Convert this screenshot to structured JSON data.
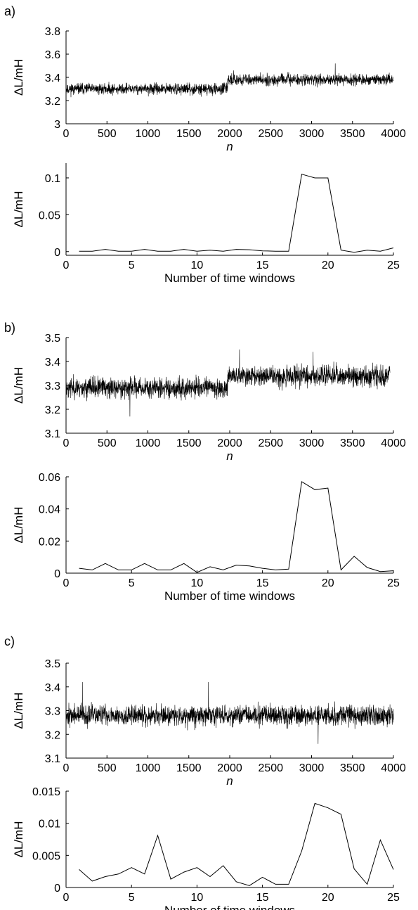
{
  "figure": {
    "panel_labels": [
      "a)",
      "b)",
      "c)"
    ]
  },
  "chart_data": [
    {
      "id": "a_top",
      "panel": "a)",
      "type": "line",
      "noise": true,
      "ylabel": "ΔL/mH",
      "xlabel": "n",
      "xlabel_italic": true,
      "xlim": [
        0,
        4000
      ],
      "ylim": [
        3.0,
        3.8
      ],
      "xticks": [
        0,
        500,
        1000,
        1500,
        2000,
        2500,
        3000,
        3500,
        4000
      ],
      "yticks": [
        3,
        3.2,
        3.4,
        3.6,
        3.8
      ],
      "yticklabels": [
        "3",
        "3.2",
        "3.4",
        "3.6",
        "3.8"
      ],
      "segments": [
        {
          "x_start": 0,
          "x_end": 1975,
          "mean": 3.3,
          "spread": 0.05
        },
        {
          "x_start": 1975,
          "x_end": 4000,
          "mean": 3.38,
          "spread": 0.05
        }
      ],
      "peaks": [
        {
          "x": 3290,
          "y": 3.52
        },
        {
          "x": 2050,
          "y": 3.46
        }
      ],
      "seed": 11
    },
    {
      "id": "a_bottom",
      "panel": "a)",
      "type": "line",
      "noise": false,
      "ylabel": "ΔL/mH",
      "xlabel": "Number of time windows",
      "xlabel_italic": false,
      "xlim": [
        0,
        25
      ],
      "ylim": [
        -0.005,
        0.12
      ],
      "xticks": [
        0,
        5,
        10,
        15,
        20,
        25
      ],
      "yticks": [
        0,
        0.05,
        0.1
      ],
      "yticklabels": [
        "0",
        "0.05",
        "0.1"
      ],
      "x": [
        1,
        2,
        3,
        4,
        5,
        6,
        7,
        8,
        9,
        10,
        11,
        12,
        13,
        14,
        15,
        16,
        17,
        18,
        19,
        20,
        21,
        22,
        23,
        24,
        25
      ],
      "y": [
        0.0005,
        0.0005,
        0.003,
        0.0005,
        0.0005,
        0.003,
        0.0005,
        0.0005,
        0.003,
        0.0005,
        0.002,
        0.0005,
        0.003,
        0.0025,
        0.001,
        0.0005,
        0.0005,
        0.105,
        0.1,
        0.1,
        0.002,
        -0.001,
        0.002,
        0.0005,
        0.005
      ]
    },
    {
      "id": "b_top",
      "panel": "b)",
      "type": "line",
      "noise": true,
      "ylabel": "ΔL/mH",
      "xlabel": "n",
      "xlabel_italic": true,
      "xlim": [
        0,
        4000
      ],
      "ylim": [
        3.1,
        3.5
      ],
      "xticks": [
        0,
        500,
        1000,
        1500,
        2000,
        2500,
        3000,
        3500,
        4000
      ],
      "yticks": [
        3.1,
        3.2,
        3.3,
        3.4,
        3.5
      ],
      "yticklabels": [
        "3.1",
        "3.2",
        "3.3",
        "3.4",
        "3.5"
      ],
      "segments": [
        {
          "x_start": 0,
          "x_end": 1975,
          "mean": 3.29,
          "spread": 0.045
        },
        {
          "x_start": 1975,
          "x_end": 3960,
          "mean": 3.34,
          "spread": 0.045
        }
      ],
      "peaks": [
        {
          "x": 2120,
          "y": 3.45
        },
        {
          "x": 3020,
          "y": 3.44
        },
        {
          "x": 780,
          "y": 3.17
        }
      ],
      "seed": 23
    },
    {
      "id": "b_bottom",
      "panel": "b)",
      "type": "line",
      "noise": false,
      "ylabel": "ΔL/mH",
      "xlabel": "Number of time windows",
      "xlabel_italic": false,
      "xlim": [
        0,
        25
      ],
      "ylim": [
        0,
        0.06
      ],
      "xticks": [
        0,
        5,
        10,
        15,
        20,
        25
      ],
      "yticks": [
        0,
        0.02,
        0.04,
        0.06
      ],
      "yticklabels": [
        "0",
        "0.02",
        "0.04",
        "0.06"
      ],
      "x": [
        1,
        2,
        3,
        4,
        5,
        6,
        7,
        8,
        9,
        10,
        11,
        12,
        13,
        14,
        15,
        16,
        17,
        18,
        19,
        20,
        21,
        22,
        23,
        24,
        25
      ],
      "y": [
        0.003,
        0.002,
        0.006,
        0.002,
        0.002,
        0.006,
        0.002,
        0.002,
        0.006,
        0.0005,
        0.004,
        0.002,
        0.005,
        0.0045,
        0.003,
        0.002,
        0.0025,
        0.057,
        0.052,
        0.053,
        0.002,
        0.0105,
        0.0035,
        0.001,
        0.0015
      ]
    },
    {
      "id": "c_top",
      "panel": "c)",
      "type": "line",
      "noise": true,
      "ylabel": "ΔL/mH",
      "xlabel": "n",
      "xlabel_italic": true,
      "xlim": [
        0,
        4000
      ],
      "ylim": [
        3.1,
        3.5
      ],
      "xticks": [
        0,
        500,
        1000,
        1500,
        2000,
        2500,
        3000,
        3500,
        4000
      ],
      "yticks": [
        3.1,
        3.2,
        3.3,
        3.4,
        3.5
      ],
      "yticklabels": [
        "3.1",
        "3.2",
        "3.3",
        "3.4",
        "3.5"
      ],
      "segments": [
        {
          "x_start": 0,
          "x_end": 4000,
          "mean": 3.28,
          "spread": 0.045
        }
      ],
      "peaks": [
        {
          "x": 1740,
          "y": 3.42
        },
        {
          "x": 200,
          "y": 3.42
        },
        {
          "x": 3080,
          "y": 3.16
        }
      ],
      "seed": 37
    },
    {
      "id": "c_bottom",
      "panel": "c)",
      "type": "line",
      "noise": false,
      "ylabel": "ΔL/mH",
      "xlabel": "Number of time windows",
      "xlabel_italic": false,
      "xlim": [
        0,
        25
      ],
      "ylim": [
        0,
        0.015
      ],
      "xticks": [
        0,
        5,
        10,
        15,
        20,
        25
      ],
      "yticks": [
        0,
        0.005,
        0.01,
        0.015
      ],
      "yticklabels": [
        "0",
        "0.005",
        "0.01",
        "0.015"
      ],
      "x": [
        1,
        2,
        3,
        4,
        5,
        6,
        7,
        8,
        9,
        10,
        11,
        12,
        13,
        14,
        15,
        16,
        17,
        18,
        19,
        20,
        21,
        22,
        23,
        24,
        25
      ],
      "y": [
        0.0028,
        0.001,
        0.0017,
        0.0021,
        0.0031,
        0.0021,
        0.0081,
        0.0013,
        0.0024,
        0.0031,
        0.0017,
        0.0034,
        0.0009,
        0.0003,
        0.0016,
        0.0005,
        0.0005,
        0.0057,
        0.0131,
        0.0124,
        0.0114,
        0.0029,
        0.0005,
        0.0074,
        0.0028
      ]
    }
  ]
}
